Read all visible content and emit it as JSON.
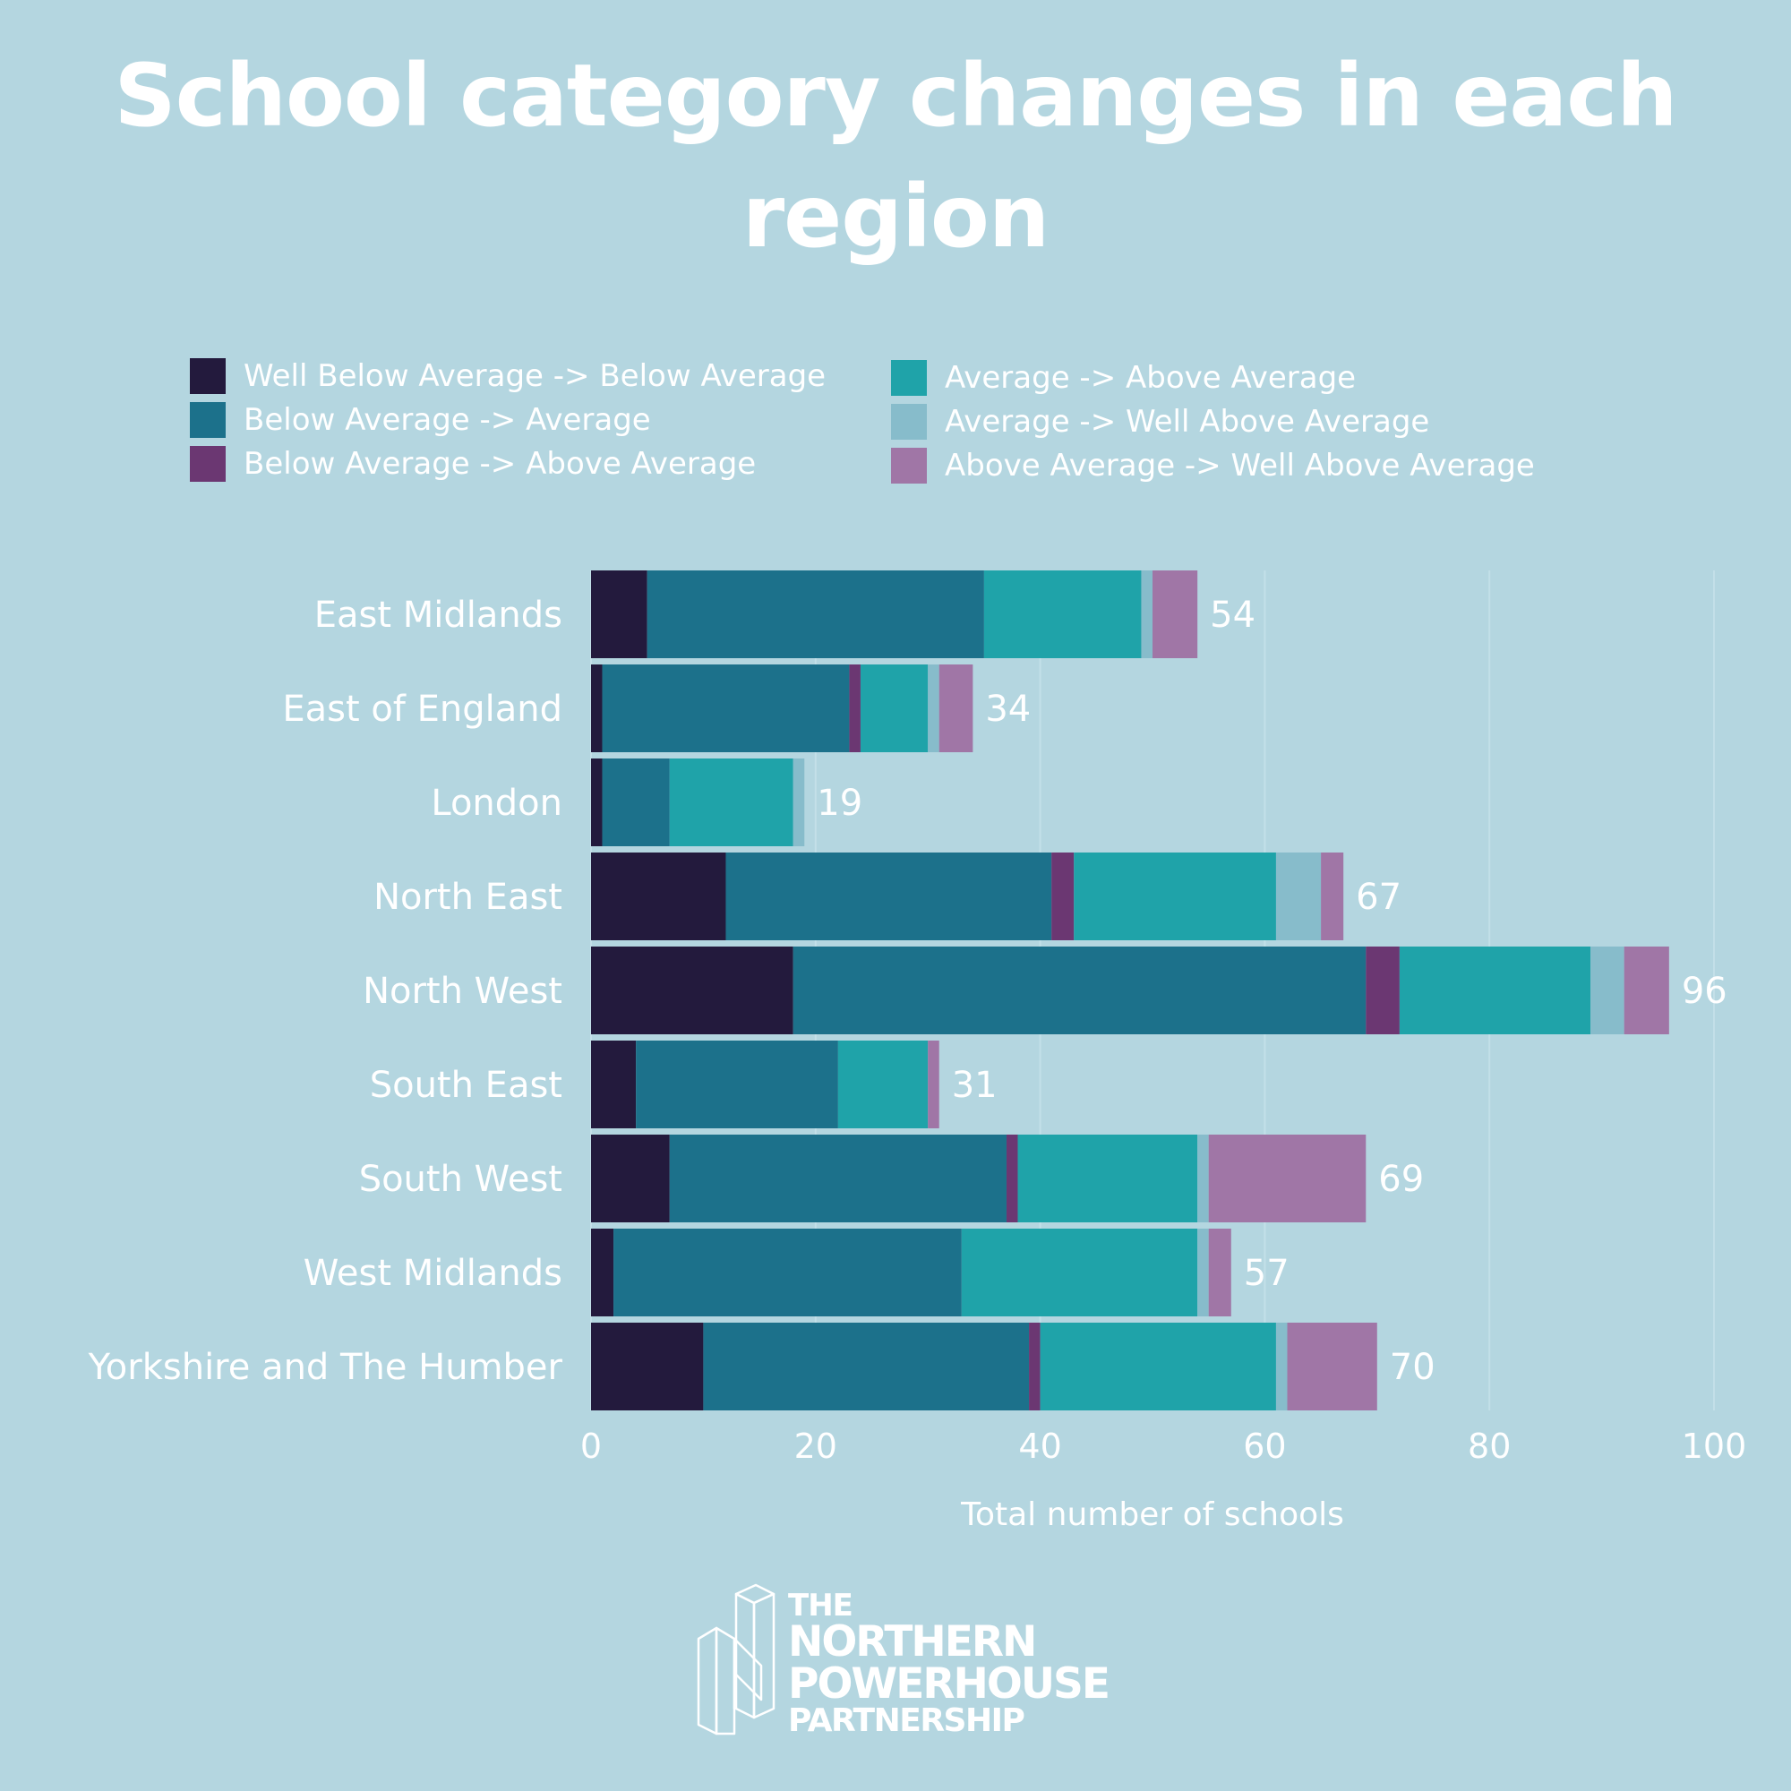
{
  "chart_data": {
    "type": "bar",
    "orientation": "horizontal",
    "stacked": true,
    "title": "School category changes in each region",
    "xlabel": "Total number of schools",
    "ylabel": "",
    "xlim": [
      0,
      100
    ],
    "xticks": [
      0,
      20,
      40,
      60,
      80,
      100
    ],
    "grid": true,
    "legend_placement": "top",
    "categories": [
      "East Midlands",
      "East of England",
      "London",
      "North East",
      "North West",
      "South East",
      "South West",
      "West Midlands",
      "Yorkshire and The Humber"
    ],
    "totals": [
      54,
      34,
      19,
      67,
      96,
      31,
      69,
      57,
      70
    ],
    "series": [
      {
        "name": "Well Below Average -> Below Average",
        "color": "#231a3d",
        "values": [
          5,
          1,
          1,
          12,
          18,
          4,
          7,
          2,
          10
        ]
      },
      {
        "name": "Below Average -> Average",
        "color": "#1c718b",
        "values": [
          30,
          22,
          6,
          29,
          51,
          18,
          30,
          31,
          29
        ]
      },
      {
        "name": "Below Average -> Above Average",
        "color": "#6b3772",
        "values": [
          0,
          1,
          0,
          2,
          3,
          0,
          1,
          0,
          1
        ]
      },
      {
        "name": "Average -> Above Average",
        "color": "#1fa3a9",
        "values": [
          14,
          6,
          11,
          18,
          17,
          8,
          16,
          21,
          21
        ]
      },
      {
        "name": "Average -> Well Above Average",
        "color": "#87bccb",
        "values": [
          1,
          1,
          1,
          4,
          3,
          0,
          1,
          1,
          1
        ]
      },
      {
        "name": "Above Average -> Well Above Average",
        "color": "#a076a6",
        "values": [
          4,
          3,
          0,
          2,
          4,
          1,
          14,
          2,
          8
        ]
      }
    ]
  },
  "logo": {
    "lines": [
      "THE",
      "NORTHERN",
      "POWERHOUSE",
      "PARTNERSHIP"
    ]
  }
}
